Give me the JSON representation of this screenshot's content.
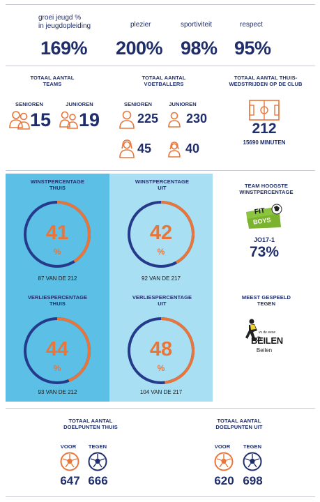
{
  "top_stats": [
    {
      "label": "groei jeugd %\nin jeugdopleiding",
      "value": "169%"
    },
    {
      "label": "plezier",
      "value": "200%"
    },
    {
      "label": "sportiviteit",
      "value": "98%"
    },
    {
      "label": "respect",
      "value": "95%"
    }
  ],
  "teams": {
    "title": "TOTAAL AANTAL\nTEAMS",
    "senioren_label": "SENIOREN",
    "senioren_value": "15",
    "junioren_label": "JUNIOREN",
    "junioren_value": "19"
  },
  "players": {
    "title": "TOTAAL AANTAL\nVOETBALLERS",
    "senioren_label": "SENIOREN",
    "junioren_label": "JUNIOREN",
    "senioren_male": "225",
    "junioren_male": "230",
    "senioren_female": "45",
    "junioren_female": "40"
  },
  "home_matches": {
    "title": "TOTAAL AANTAL THUIS-\nWEDSTRIJDEN OP DE CLUB",
    "value": "212",
    "minutes": "15690 MINUTEN"
  },
  "rings": [
    {
      "title": "WINSTPERCENTAGE\nTHUIS",
      "value": "41",
      "unit": "%",
      "fraction": 0.41,
      "caption": "87 VAN DE 212"
    },
    {
      "title": "WINSTPERCENTAGE\nUIT",
      "value": "42",
      "unit": "%",
      "fraction": 0.42,
      "caption": "92 VAN DE 217"
    },
    {
      "title": "VERLIESPERCENTAGE\nTHUIS",
      "value": "44",
      "unit": "%",
      "fraction": 0.44,
      "caption": "93 VAN DE 212"
    },
    {
      "title": "VERLIESPERCENTAGE\nUIT",
      "value": "48",
      "unit": "%",
      "fraction": 0.48,
      "caption": "104 VAN DE 217"
    }
  ],
  "best_team": {
    "title": "TEAM HOOGSTE\nWINSTPERCENTAGE",
    "logo_text_top": "FIT",
    "logo_text_bottom": "BOYS",
    "team": "JO17-1",
    "value": "73%"
  },
  "most_played": {
    "title": "MEEST GESPEELD\nTEGEN",
    "logo_small": "vv de eese",
    "logo_text": "BEILEN",
    "name": "Beilen"
  },
  "goals_home": {
    "title": "TOTAAL AANTAL\nDOELPUNTEN THUIS",
    "voor_label": "VOOR",
    "tegen_label": "TEGEN",
    "voor_value": "647",
    "tegen_value": "666"
  },
  "goals_away": {
    "title": "TOTAAL AANTAL\nDOELPUNTEN UIT",
    "voor_label": "VOOR",
    "tegen_label": "TEGEN",
    "voor_value": "620",
    "tegen_value": "698"
  },
  "colors": {
    "navy": "#1f2e6b",
    "orange": "#e8763a",
    "panel_dark": "#5bbfe6",
    "panel_light": "#a9dff3",
    "ring_track": "#253a8a",
    "lime": "#8bc53f"
  },
  "icons": [
    "person-orange-icon",
    "person-group-icon",
    "female-person-icon",
    "soccer-field-icon",
    "soccer-ball-icon"
  ]
}
